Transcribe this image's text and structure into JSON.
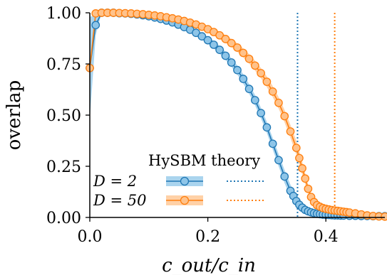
{
  "chart_data": {
    "type": "line",
    "title": "",
    "xlabel": "c_out/c_in",
    "ylabel": "overlap",
    "xlim": [
      0,
      0.5
    ],
    "ylim": [
      0,
      1
    ],
    "x_ticks": [
      "0.0",
      "0.2",
      "0.4"
    ],
    "x_tick_values": [
      0.0,
      0.2,
      0.4
    ],
    "y_ticks": [
      "0.00",
      "0.25",
      "0.50",
      "0.75",
      "1.00"
    ],
    "y_tick_values": [
      0.0,
      0.25,
      0.5,
      0.75,
      1.0
    ],
    "grid": false,
    "legend": {
      "placement": "lower-left",
      "header": "HySBM   theory",
      "rows": [
        "D = 2",
        "D = 50"
      ]
    },
    "series": [
      {
        "name": "D = 2",
        "color": "#1f77b4",
        "fill": "#8ec5e8",
        "theory_threshold": 0.352,
        "x": [
          0.0,
          0.01,
          0.02,
          0.03,
          0.04,
          0.05,
          0.06,
          0.07,
          0.08,
          0.09,
          0.1,
          0.11,
          0.12,
          0.13,
          0.14,
          0.15,
          0.16,
          0.17,
          0.18,
          0.19,
          0.2,
          0.21,
          0.22,
          0.23,
          0.24,
          0.25,
          0.26,
          0.27,
          0.28,
          0.29,
          0.3,
          0.31,
          0.32,
          0.33,
          0.34,
          0.345,
          0.35,
          0.355,
          0.36,
          0.365,
          0.37,
          0.375,
          0.38,
          0.385,
          0.39,
          0.395,
          0.4,
          0.405,
          0.41,
          0.415,
          0.42,
          0.425,
          0.43,
          0.44,
          0.45,
          0.46,
          0.47,
          0.48,
          0.49,
          0.5
        ],
        "y": [
          0.73,
          0.94,
          1.0,
          1.0,
          1.0,
          0.998,
          0.997,
          0.995,
          0.992,
          0.988,
          0.983,
          0.977,
          0.97,
          0.962,
          0.953,
          0.942,
          0.93,
          0.917,
          0.902,
          0.885,
          0.866,
          0.844,
          0.819,
          0.79,
          0.757,
          0.72,
          0.677,
          0.628,
          0.573,
          0.51,
          0.44,
          0.36,
          0.28,
          0.2,
          0.13,
          0.105,
          0.08,
          0.062,
          0.048,
          0.037,
          0.03,
          0.025,
          0.021,
          0.018,
          0.016,
          0.014,
          0.013,
          0.012,
          0.011,
          0.01,
          0.01,
          0.009,
          0.009,
          0.008,
          0.008,
          0.007,
          0.007,
          0.006,
          0.006,
          0.006
        ],
        "band": [
          0.25,
          0.05,
          0.0,
          0.0,
          0.0,
          0.002,
          0.003,
          0.004,
          0.005,
          0.006,
          0.007,
          0.008,
          0.009,
          0.01,
          0.011,
          0.012,
          0.013,
          0.014,
          0.015,
          0.016,
          0.017,
          0.018,
          0.019,
          0.02,
          0.021,
          0.022,
          0.023,
          0.024,
          0.025,
          0.026,
          0.027,
          0.028,
          0.03,
          0.032,
          0.03,
          0.027,
          0.024,
          0.02,
          0.016,
          0.013,
          0.01,
          0.008,
          0.007,
          0.006,
          0.005,
          0.005,
          0.004,
          0.004,
          0.004,
          0.004,
          0.004,
          0.003,
          0.003,
          0.003,
          0.003,
          0.003,
          0.003,
          0.003,
          0.003,
          0.003
        ]
      },
      {
        "name": "D = 50",
        "color": "#ff7f0e",
        "fill": "#ffc28a",
        "theory_threshold": 0.415,
        "x": [
          0.0,
          0.01,
          0.02,
          0.03,
          0.04,
          0.05,
          0.06,
          0.07,
          0.08,
          0.09,
          0.1,
          0.11,
          0.12,
          0.13,
          0.14,
          0.15,
          0.16,
          0.17,
          0.18,
          0.19,
          0.2,
          0.21,
          0.22,
          0.23,
          0.24,
          0.25,
          0.26,
          0.27,
          0.28,
          0.29,
          0.3,
          0.31,
          0.32,
          0.33,
          0.34,
          0.35,
          0.355,
          0.36,
          0.365,
          0.37,
          0.375,
          0.38,
          0.385,
          0.39,
          0.395,
          0.4,
          0.405,
          0.41,
          0.415,
          0.42,
          0.425,
          0.43,
          0.435,
          0.44,
          0.45,
          0.46,
          0.47,
          0.48,
          0.49,
          0.5
        ],
        "y": [
          0.73,
          0.997,
          1.0,
          1.0,
          1.0,
          0.999,
          0.998,
          0.997,
          0.995,
          0.993,
          0.99,
          0.987,
          0.983,
          0.978,
          0.973,
          0.967,
          0.96,
          0.952,
          0.943,
          0.932,
          0.92,
          0.906,
          0.89,
          0.872,
          0.852,
          0.83,
          0.804,
          0.775,
          0.742,
          0.705,
          0.663,
          0.615,
          0.56,
          0.495,
          0.42,
          0.34,
          0.29,
          0.24,
          0.19,
          0.14,
          0.1,
          0.075,
          0.06,
          0.052,
          0.046,
          0.042,
          0.039,
          0.036,
          0.034,
          0.032,
          0.03,
          0.028,
          0.026,
          0.024,
          0.02,
          0.015,
          0.01,
          0.007,
          0.005,
          0.004
        ],
        "band": [
          0.02,
          0.003,
          0.0,
          0.0,
          0.0,
          0.001,
          0.002,
          0.003,
          0.004,
          0.005,
          0.006,
          0.007,
          0.008,
          0.009,
          0.01,
          0.011,
          0.012,
          0.013,
          0.014,
          0.015,
          0.016,
          0.017,
          0.018,
          0.019,
          0.02,
          0.021,
          0.022,
          0.023,
          0.024,
          0.025,
          0.026,
          0.027,
          0.028,
          0.03,
          0.032,
          0.034,
          0.034,
          0.032,
          0.028,
          0.022,
          0.016,
          0.012,
          0.01,
          0.009,
          0.008,
          0.007,
          0.007,
          0.006,
          0.006,
          0.006,
          0.006,
          0.006,
          0.005,
          0.005,
          0.005,
          0.004,
          0.004,
          0.003,
          0.003,
          0.003
        ]
      }
    ]
  }
}
